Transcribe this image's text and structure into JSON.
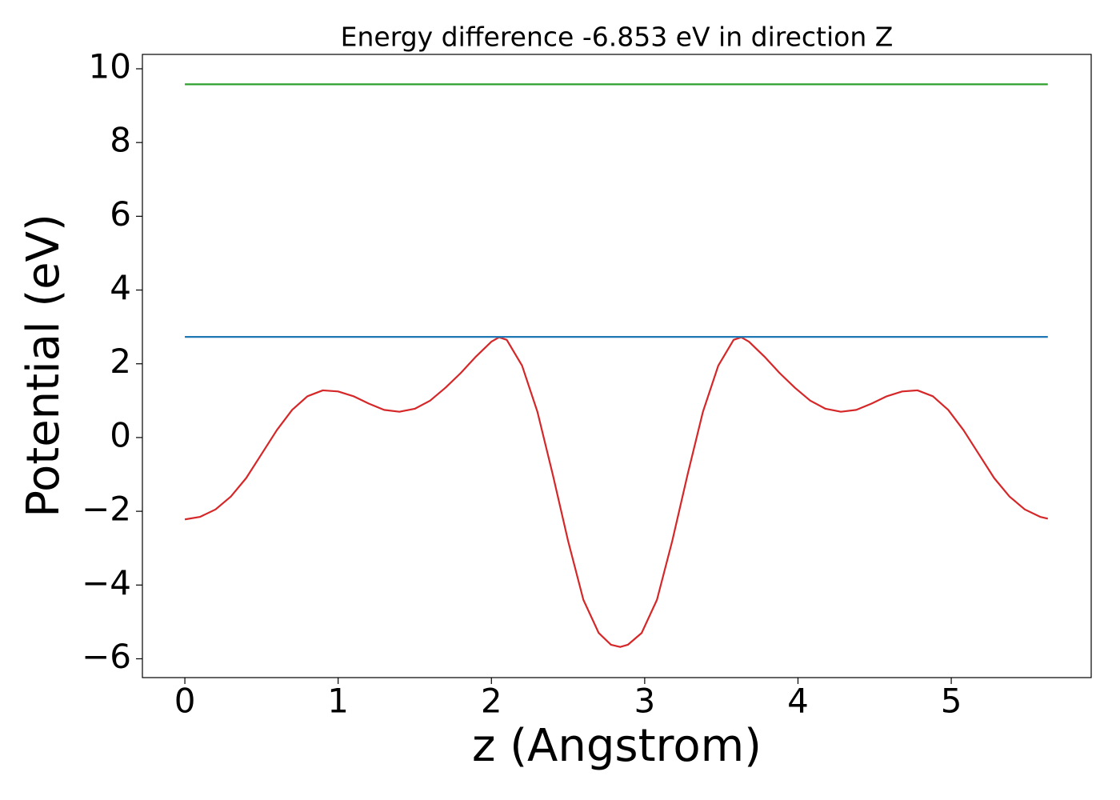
{
  "chart_data": {
    "type": "line",
    "title": "Energy difference -6.853 eV in direction Z",
    "xlabel": "z (Angstrom)",
    "ylabel": "Potential (eV)",
    "xlim": [
      -0.277,
      5.913
    ],
    "ylim": [
      -6.51,
      10.39
    ],
    "xticks": [
      0,
      1,
      2,
      3,
      4,
      5
    ],
    "yticks": [
      {
        "value": -6,
        "label": "−6"
      },
      {
        "value": -4,
        "label": "−4"
      },
      {
        "value": -2,
        "label": "−2"
      },
      0,
      2,
      4,
      6,
      8,
      10
    ],
    "grid": false,
    "series": [
      {
        "color": "#d62728",
        "x": [
          0,
          0.1,
          0.2,
          0.3,
          0.4,
          0.5,
          0.6,
          0.7,
          0.8,
          0.9,
          1.0,
          1.1,
          1.2,
          1.3,
          1.4,
          1.5,
          1.6,
          1.7,
          1.8,
          1.9,
          2.0,
          2.05,
          2.1,
          2.2,
          2.3,
          2.4,
          2.5,
          2.6,
          2.7,
          2.78,
          2.84,
          2.89,
          2.98,
          3.08,
          3.18,
          3.28,
          3.38,
          3.48,
          3.58,
          3.63,
          3.68,
          3.78,
          3.88,
          3.98,
          4.08,
          4.18,
          4.28,
          4.38,
          4.48,
          4.58,
          4.68,
          4.78,
          4.88,
          4.98,
          5.08,
          5.18,
          5.28,
          5.38,
          5.48,
          5.58,
          5.63
        ],
        "values": [
          -2.22,
          -2.15,
          -1.95,
          -1.6,
          -1.1,
          -0.45,
          0.2,
          0.75,
          1.12,
          1.28,
          1.25,
          1.12,
          0.92,
          0.75,
          0.7,
          0.78,
          1.0,
          1.35,
          1.75,
          2.2,
          2.6,
          2.72,
          2.65,
          1.95,
          0.7,
          -1.0,
          -2.8,
          -4.4,
          -5.3,
          -5.62,
          -5.68,
          -5.62,
          -5.3,
          -4.4,
          -2.8,
          -1.0,
          0.7,
          1.95,
          2.65,
          2.72,
          2.6,
          2.2,
          1.75,
          1.35,
          1.0,
          0.78,
          0.7,
          0.75,
          0.92,
          1.12,
          1.25,
          1.28,
          1.12,
          0.75,
          0.2,
          -0.45,
          -1.1,
          -1.6,
          -1.95,
          -2.15,
          -2.2
        ]
      },
      {
        "color": "#1f77b4",
        "x": [
          0,
          5.63
        ],
        "values": [
          2.73,
          2.73
        ]
      },
      {
        "color": "#2ca02c",
        "x": [
          0,
          5.63
        ],
        "values": [
          9.58,
          9.58
        ]
      }
    ]
  }
}
